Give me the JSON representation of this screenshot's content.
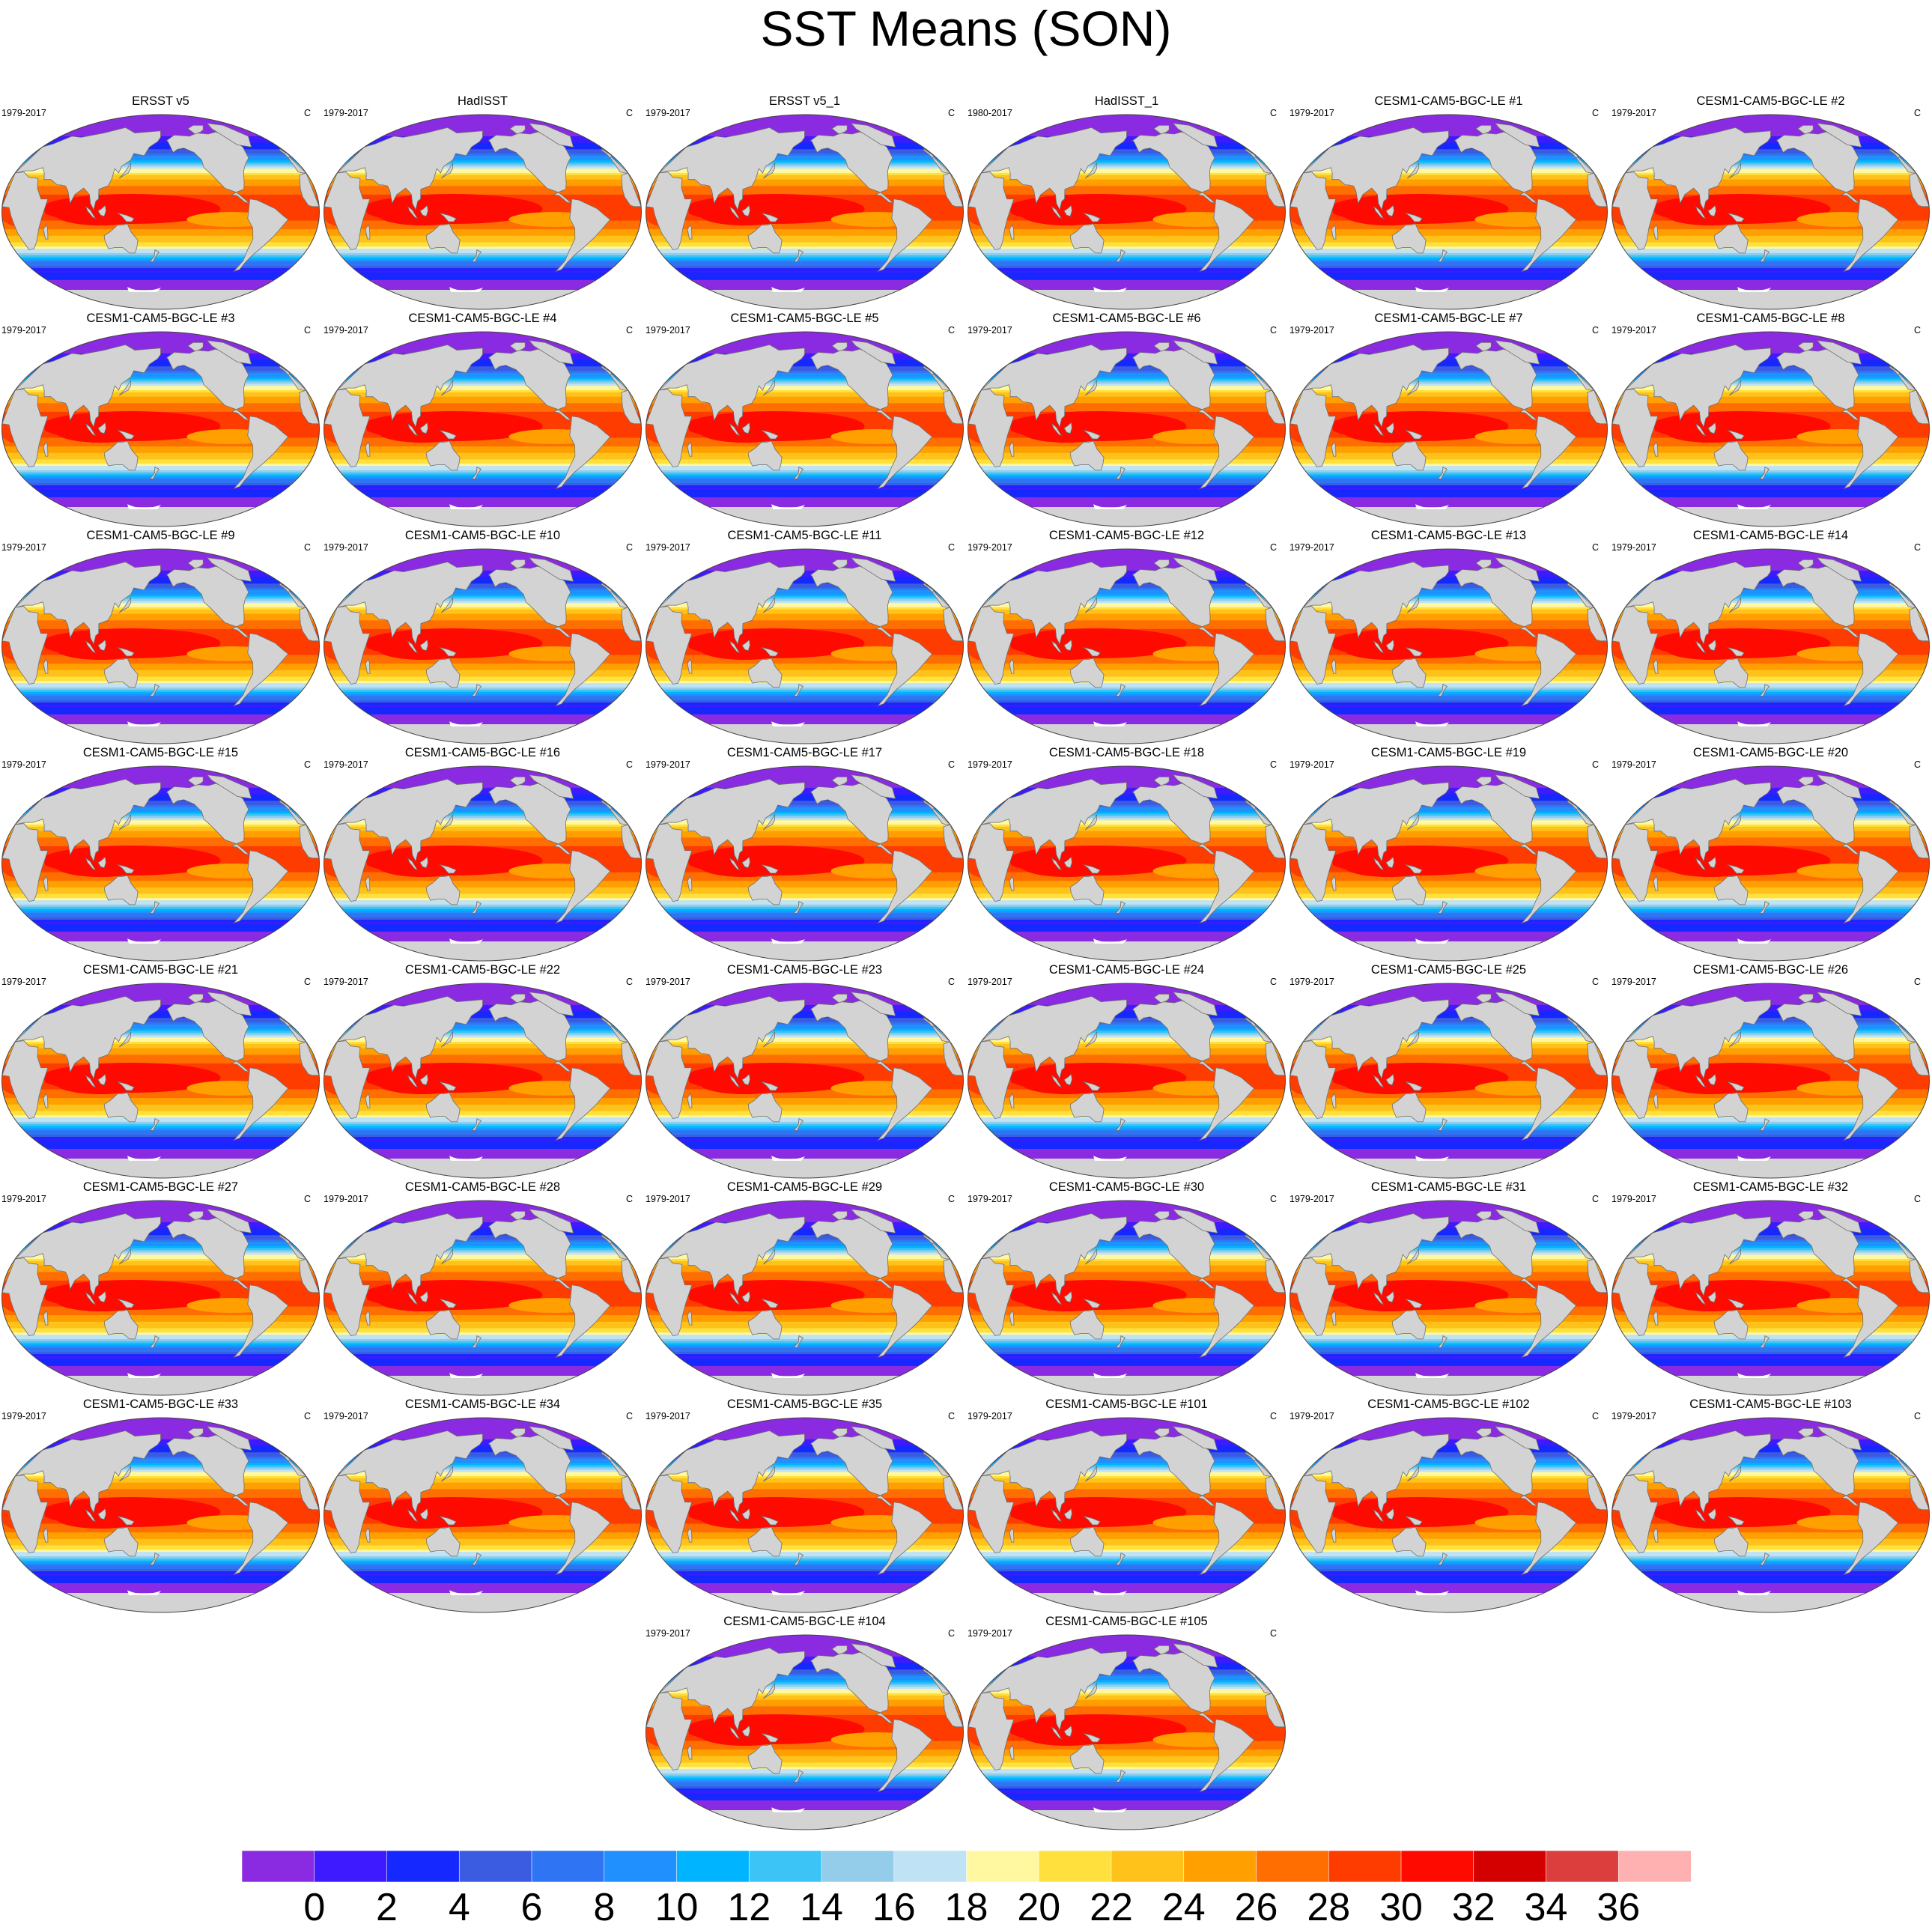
{
  "title": "SST Means (SON)",
  "colors": {
    "land": "#d3d3d3",
    "coast": "#6e6e6e",
    "ice_shelf": "#ffffff"
  },
  "chart_data": {
    "type": "contour-map-panels",
    "projection": "Robinson (centered on Pacific)",
    "variable": "Sea surface temperature",
    "season": "SON",
    "units": "C",
    "levels": [
      0,
      2,
      4,
      6,
      8,
      10,
      12,
      14,
      16,
      18,
      20,
      22,
      24,
      26,
      28,
      30,
      32,
      34,
      36
    ],
    "colorbar_colors": [
      "#8a2be2",
      "#3d1aff",
      "#1428ff",
      "#3b5be0",
      "#2f74f2",
      "#2190ff",
      "#00b4ff",
      "#3cc4f7",
      "#93cdea",
      "#bfe2f5",
      "#fff8a0",
      "#ffe03d",
      "#ffc21a",
      "#ff9f00",
      "#ff6e00",
      "#ff3c00",
      "#ff0a00",
      "#d40000",
      "#dc3d3d",
      "#ffb0b0"
    ],
    "panels": [
      {
        "title": "ERSST v5",
        "period": "1979-2017",
        "units": "C"
      },
      {
        "title": "HadISST",
        "period": "1979-2017",
        "units": "C"
      },
      {
        "title": "ERSST v5_1",
        "period": "1979-2017",
        "units": "C"
      },
      {
        "title": "HadISST_1",
        "period": "1980-2017",
        "units": "C"
      },
      {
        "title": "CESM1-CAM5-BGC-LE #1",
        "period": "1979-2017",
        "units": "C"
      },
      {
        "title": "CESM1-CAM5-BGC-LE #2",
        "period": "1979-2017",
        "units": "C"
      },
      {
        "title": "CESM1-CAM5-BGC-LE #3",
        "period": "1979-2017",
        "units": "C"
      },
      {
        "title": "CESM1-CAM5-BGC-LE #4",
        "period": "1979-2017",
        "units": "C"
      },
      {
        "title": "CESM1-CAM5-BGC-LE #5",
        "period": "1979-2017",
        "units": "C"
      },
      {
        "title": "CESM1-CAM5-BGC-LE #6",
        "period": "1979-2017",
        "units": "C"
      },
      {
        "title": "CESM1-CAM5-BGC-LE #7",
        "period": "1979-2017",
        "units": "C"
      },
      {
        "title": "CESM1-CAM5-BGC-LE #8",
        "period": "1979-2017",
        "units": "C"
      },
      {
        "title": "CESM1-CAM5-BGC-LE #9",
        "period": "1979-2017",
        "units": "C"
      },
      {
        "title": "CESM1-CAM5-BGC-LE #10",
        "period": "1979-2017",
        "units": "C"
      },
      {
        "title": "CESM1-CAM5-BGC-LE #11",
        "period": "1979-2017",
        "units": "C"
      },
      {
        "title": "CESM1-CAM5-BGC-LE #12",
        "period": "1979-2017",
        "units": "C"
      },
      {
        "title": "CESM1-CAM5-BGC-LE #13",
        "period": "1979-2017",
        "units": "C"
      },
      {
        "title": "CESM1-CAM5-BGC-LE #14",
        "period": "1979-2017",
        "units": "C"
      },
      {
        "title": "CESM1-CAM5-BGC-LE #15",
        "period": "1979-2017",
        "units": "C"
      },
      {
        "title": "CESM1-CAM5-BGC-LE #16",
        "period": "1979-2017",
        "units": "C"
      },
      {
        "title": "CESM1-CAM5-BGC-LE #17",
        "period": "1979-2017",
        "units": "C"
      },
      {
        "title": "CESM1-CAM5-BGC-LE #18",
        "period": "1979-2017",
        "units": "C"
      },
      {
        "title": "CESM1-CAM5-BGC-LE #19",
        "period": "1979-2017",
        "units": "C"
      },
      {
        "title": "CESM1-CAM5-BGC-LE #20",
        "period": "1979-2017",
        "units": "C"
      },
      {
        "title": "CESM1-CAM5-BGC-LE #21",
        "period": "1979-2017",
        "units": "C"
      },
      {
        "title": "CESM1-CAM5-BGC-LE #22",
        "period": "1979-2017",
        "units": "C"
      },
      {
        "title": "CESM1-CAM5-BGC-LE #23",
        "period": "1979-2017",
        "units": "C"
      },
      {
        "title": "CESM1-CAM5-BGC-LE #24",
        "period": "1979-2017",
        "units": "C"
      },
      {
        "title": "CESM1-CAM5-BGC-LE #25",
        "period": "1979-2017",
        "units": "C"
      },
      {
        "title": "CESM1-CAM5-BGC-LE #26",
        "period": "1979-2017",
        "units": "C"
      },
      {
        "title": "CESM1-CAM5-BGC-LE #27",
        "period": "1979-2017",
        "units": "C"
      },
      {
        "title": "CESM1-CAM5-BGC-LE #28",
        "period": "1979-2017",
        "units": "C"
      },
      {
        "title": "CESM1-CAM5-BGC-LE #29",
        "period": "1979-2017",
        "units": "C"
      },
      {
        "title": "CESM1-CAM5-BGC-LE #30",
        "period": "1979-2017",
        "units": "C"
      },
      {
        "title": "CESM1-CAM5-BGC-LE #31",
        "period": "1979-2017",
        "units": "C"
      },
      {
        "title": "CESM1-CAM5-BGC-LE #32",
        "period": "1979-2017",
        "units": "C"
      },
      {
        "title": "CESM1-CAM5-BGC-LE #33",
        "period": "1979-2017",
        "units": "C"
      },
      {
        "title": "CESM1-CAM5-BGC-LE #34",
        "period": "1979-2017",
        "units": "C"
      },
      {
        "title": "CESM1-CAM5-BGC-LE #35",
        "period": "1979-2017",
        "units": "C"
      },
      {
        "title": "CESM1-CAM5-BGC-LE #101",
        "period": "1979-2017",
        "units": "C"
      },
      {
        "title": "CESM1-CAM5-BGC-LE #102",
        "period": "1979-2017",
        "units": "C"
      },
      {
        "title": "CESM1-CAM5-BGC-LE #103",
        "period": "1979-2017",
        "units": "C"
      },
      {
        "title": "CESM1-CAM5-BGC-LE #104",
        "period": "1979-2017",
        "units": "C"
      },
      {
        "title": "CESM1-CAM5-BGC-LE #105",
        "period": "1979-2017",
        "units": "C"
      }
    ]
  }
}
